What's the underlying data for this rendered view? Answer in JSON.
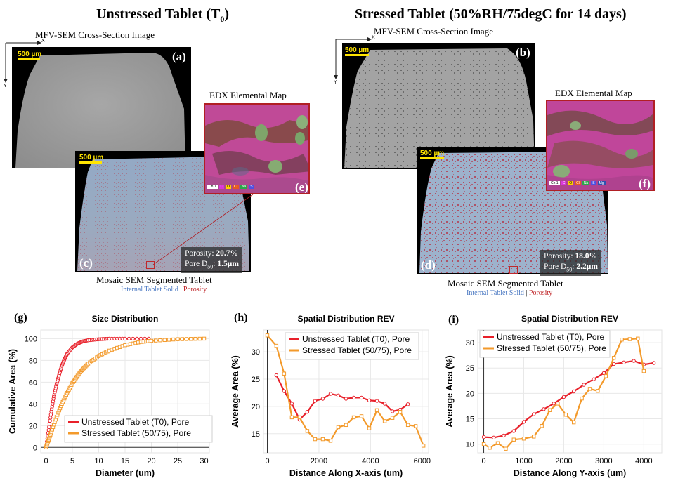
{
  "left": {
    "title_main": "Unstressed Tablet (T",
    "title_sub": "0",
    "title_end": ")",
    "mfv_label": "MFV-SEM Cross-Section Image",
    "scale_label": "500 µm",
    "axis_x": "X",
    "axis_y": "Y",
    "panel_a": "(a)",
    "panel_c": "(c)",
    "panel_e": "(e)",
    "edx_label": "EDX Elemental Map",
    "porosity_label": "Porosity:",
    "porosity_value": "20.7%",
    "pore_label_main": "Pore D",
    "pore_label_sub": "50",
    "pore_label_end": ":",
    "pore_value": "1.5µm",
    "mosaic_label": "Mosaic SEM Segmented Tablet",
    "legend_solid": "Internal Tablet Solid",
    "legend_sep": " | ",
    "legend_porosity": "Porosity"
  },
  "right": {
    "title": "Stressed Tablet (50%RH/75degC for 14 days)",
    "mfv_label": "MFV-SEM Cross-Section Image",
    "scale_label": "500 µm",
    "axis_x": "X",
    "axis_y": "Y",
    "panel_b": "(b)",
    "panel_d": "(d)",
    "panel_f": "(f)",
    "edx_label": "EDX Elemental Map",
    "porosity_label": "Porosity:",
    "porosity_value": "18.0%",
    "pore_label_main": "Pore D",
    "pore_label_sub": "50",
    "pore_label_end": ":",
    "pore_value": "2.2µm",
    "mosaic_label": "Mosaic SEM Segmented Tablet",
    "legend_solid": "Internal Tablet Solid",
    "legend_sep": " | ",
    "legend_porosity": "Porosity"
  },
  "edx_legend_items": [
    "Ch 1",
    "C",
    "O",
    "Cl",
    "Na",
    "S",
    "Mg"
  ],
  "colors": {
    "unstressed": "#e8202a",
    "stressed": "#f39a2b",
    "solid_legend": "#4a78c2",
    "porosity_legend": "#c0282b",
    "frame": "#b11f24",
    "scalebar": "#ffe400"
  },
  "chart_data": [
    {
      "panel": "(g)",
      "type": "line",
      "title": "Size Distribution",
      "xlabel": "Diameter (um)",
      "ylabel": "Cumulative Area (%)",
      "xlim": [
        -1,
        31
      ],
      "ylim": [
        -5,
        108
      ],
      "xticks": [
        0,
        5,
        10,
        15,
        20,
        25,
        30
      ],
      "yticks": [
        0,
        20,
        40,
        60,
        80,
        100
      ],
      "legend_position": "lower-right",
      "series": [
        {
          "name": "Unstressed Tablet (T0), Pore",
          "x": [
            0,
            0.5,
            1,
            1.5,
            2,
            2.5,
            3,
            3.5,
            4,
            5,
            6,
            7,
            8,
            10,
            12,
            15,
            19.5
          ],
          "y": [
            0,
            16,
            33,
            47,
            58,
            67,
            75,
            81,
            86,
            92,
            95.5,
            97.5,
            98.5,
            99.5,
            100,
            100,
            100
          ]
        },
        {
          "name": "Stressed Tablet (50/75), Pore",
          "x": [
            0,
            0.5,
            1,
            2,
            3,
            4,
            5,
            6,
            7,
            8,
            10,
            12,
            15,
            18,
            20,
            25,
            30
          ],
          "y": [
            0,
            7,
            14,
            28,
            40,
            50,
            59,
            66,
            72,
            77,
            84,
            89,
            94,
            97,
            98,
            99.5,
            100
          ]
        }
      ]
    },
    {
      "panel": "(h)",
      "type": "line",
      "title": "Spatial Distribution REV",
      "xlabel": "Distance Along X-axis (um)",
      "ylabel": "Average Area (%)",
      "xlim": [
        -150,
        6250
      ],
      "ylim": [
        11.5,
        34
      ],
      "xticks": [
        0,
        2000,
        4000,
        6000
      ],
      "yticks": [
        15,
        20,
        25,
        30
      ],
      "legend_position": "top-right",
      "series": [
        {
          "name": "Unstressed Tablet (T0), Pore",
          "x": [
            350,
            650,
            950,
            1250,
            1550,
            1850,
            2150,
            2450,
            2750,
            3050,
            3350,
            3650,
            3950,
            4250,
            4550,
            4850,
            5150,
            5450
          ],
          "y": [
            25.7,
            22.8,
            20.5,
            17.6,
            19.0,
            21.0,
            21.4,
            22.3,
            22.0,
            21.4,
            21.6,
            21.6,
            21.1,
            21.0,
            20.5,
            19.1,
            19.4,
            20.4
          ]
        },
        {
          "name": "Stressed Tablet (50/75), Pore",
          "x": [
            0,
            350,
            650,
            950,
            1250,
            1550,
            1850,
            2150,
            2450,
            2750,
            3050,
            3350,
            3650,
            3950,
            4250,
            4550,
            4850,
            5150,
            5450,
            5750,
            6050
          ],
          "y": [
            33.0,
            31.1,
            26.0,
            18.0,
            18.0,
            15.5,
            14.0,
            14.0,
            13.7,
            16.2,
            16.6,
            18.0,
            18.2,
            16.0,
            19.3,
            17.3,
            17.9,
            19.0,
            16.6,
            16.4,
            12.8
          ]
        }
      ]
    },
    {
      "panel": "(i)",
      "type": "line",
      "title": "Spatial Distribution REV",
      "xlabel": "Distance Along Y-axis (um)",
      "ylabel": "Average Area (%)",
      "xlim": [
        -150,
        4450
      ],
      "ylim": [
        8.3,
        32.5
      ],
      "xticks": [
        0,
        1000,
        2000,
        3000,
        4000
      ],
      "yticks": [
        10,
        15,
        20,
        25,
        30
      ],
      "legend_position": "top-left",
      "series": [
        {
          "name": "Unstressed Tablet (T0), Pore",
          "x": [
            0,
            250,
            500,
            750,
            1000,
            1250,
            1500,
            1750,
            2000,
            2250,
            2500,
            2750,
            3000,
            3250,
            3500,
            3750,
            4000,
            4250
          ],
          "y": [
            11.4,
            11.3,
            11.7,
            12.6,
            14.4,
            15.9,
            16.9,
            18.0,
            19.3,
            20.4,
            21.7,
            22.8,
            24.0,
            25.8,
            26.1,
            26.4,
            25.7,
            26.0
          ]
        },
        {
          "name": "Stressed Tablet (50/75), Pore",
          "x": [
            0,
            150,
            350,
            550,
            750,
            1000,
            1250,
            1450,
            1650,
            1850,
            2050,
            2250,
            2450,
            2650,
            2850,
            3050,
            3250,
            3450,
            3650,
            3850,
            4000
          ],
          "y": [
            10.0,
            9.3,
            10.2,
            9.1,
            10.9,
            11.1,
            11.5,
            13.6,
            16.7,
            18.0,
            15.8,
            14.3,
            19.0,
            20.9,
            20.5,
            23.4,
            27.0,
            30.6,
            30.7,
            30.8,
            24.4
          ]
        }
      ]
    }
  ]
}
